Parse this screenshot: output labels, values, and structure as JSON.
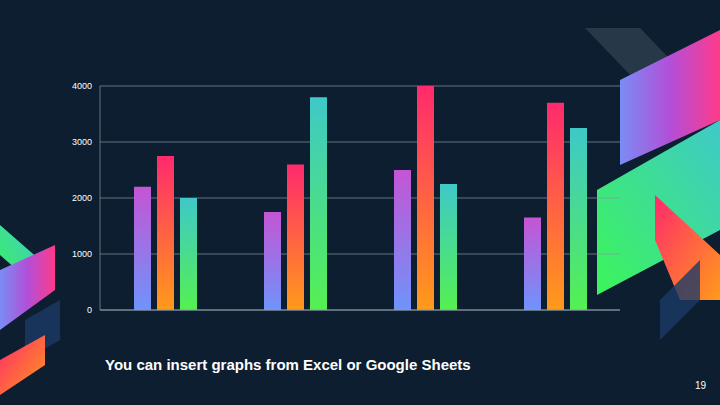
{
  "chart_data": {
    "type": "bar",
    "categories": [
      null,
      null,
      null,
      null
    ],
    "series": [
      {
        "color": "#c455d4",
        "values": [
          2200,
          1750,
          2500,
          1650
        ]
      },
      {
        "color": "#ff2a6d",
        "values": [
          2750,
          2600,
          4000,
          3700
        ]
      },
      {
        "color": "#3fc8c8",
        "values": [
          2000,
          3800,
          2250,
          3250
        ]
      }
    ],
    "ylim": [
      0,
      4000
    ],
    "yticks": [
      0,
      1000,
      2000,
      3000,
      4000
    ],
    "grid": true,
    "tick_labels": "y"
  },
  "footer": {
    "text": "You can insert graphs from Excel or Google Sheets",
    "page_number": 19
  }
}
